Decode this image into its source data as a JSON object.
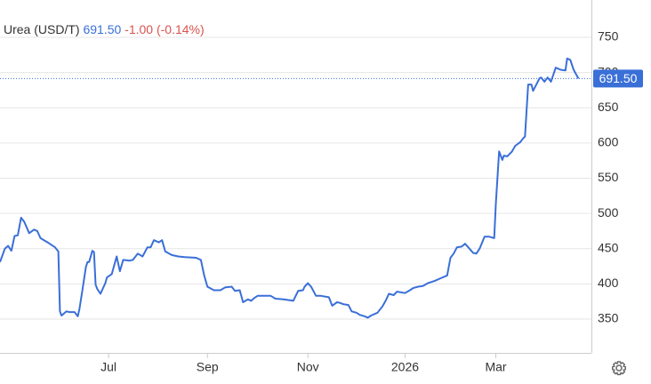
{
  "chart_data": {
    "type": "line",
    "title": "Urea (USD/T)",
    "change": "-1.00 (-0.14%)",
    "last": {
      "value": 691.5,
      "label": "691.50"
    },
    "color": "#3a6fd8",
    "grid": true,
    "xlim": [
      0,
      365
    ],
    "ylim": [
      300,
      800
    ],
    "yticks": [
      350,
      400,
      450,
      500,
      550,
      600,
      650,
      700,
      750
    ],
    "xticks": [
      {
        "value": 67,
        "label": "Jul"
      },
      {
        "value": 128,
        "label": "Sep"
      },
      {
        "value": 190,
        "label": "Nov"
      },
      {
        "value": 250,
        "label": "2026"
      },
      {
        "value": 306,
        "label": "Mar"
      }
    ],
    "x": [
      0,
      3,
      5,
      7,
      9,
      11,
      13,
      15,
      18,
      21,
      23,
      25,
      30,
      34,
      36,
      37,
      38,
      41,
      43,
      46,
      48,
      49,
      51,
      53,
      54,
      55,
      57,
      58,
      59,
      60,
      62,
      65,
      66,
      69,
      72,
      74,
      76,
      80,
      82,
      85,
      88,
      91,
      93,
      95,
      98,
      100,
      102,
      106,
      110,
      114,
      121,
      124,
      126,
      128,
      132,
      136,
      139,
      143,
      145,
      148,
      150,
      153,
      155,
      157,
      159,
      167,
      170,
      175,
      181,
      184,
      187,
      188,
      190,
      192,
      195,
      198,
      203,
      205,
      208,
      210,
      212,
      215,
      217,
      220,
      222,
      225,
      227,
      229,
      233,
      236,
      238,
      240,
      243,
      245,
      250,
      253,
      255,
      258,
      261,
      264,
      268,
      272,
      276,
      278,
      280,
      282,
      285,
      287,
      289,
      292,
      294,
      296,
      299,
      302,
      305,
      306,
      308,
      310,
      311,
      313,
      316,
      318,
      321,
      323,
      324,
      326,
      328,
      329,
      331,
      333,
      334,
      336,
      338,
      340,
      343,
      346,
      349,
      350,
      352,
      354,
      357
    ],
    "values": [
      431,
      450,
      454,
      447,
      468,
      469,
      494,
      488,
      472,
      477,
      475,
      465,
      458,
      452,
      446,
      361,
      355,
      361,
      360,
      360,
      354,
      364,
      393,
      424,
      431,
      431,
      447,
      445,
      399,
      393,
      386,
      401,
      409,
      414,
      439,
      418,
      434,
      433,
      434,
      443,
      439,
      452,
      452,
      462,
      459,
      462,
      446,
      441,
      439,
      438,
      437,
      434,
      412,
      396,
      391,
      391,
      395,
      396,
      390,
      391,
      374,
      378,
      376,
      380,
      383,
      383,
      379,
      378,
      376,
      390,
      391,
      396,
      401,
      396,
      383,
      383,
      381,
      369,
      374,
      373,
      371,
      370,
      361,
      359,
      356,
      354,
      352,
      355,
      359,
      368,
      376,
      386,
      384,
      389,
      387,
      391,
      394,
      396,
      397,
      401,
      404,
      408,
      412,
      437,
      443,
      452,
      453,
      457,
      452,
      444,
      443,
      450,
      467,
      467,
      465,
      513,
      588,
      576,
      582,
      581,
      588,
      596,
      601,
      607,
      609,
      683,
      683,
      674,
      683,
      692,
      693,
      687,
      693,
      687,
      707,
      704,
      703,
      720,
      718,
      704,
      691.5
    ]
  }
}
